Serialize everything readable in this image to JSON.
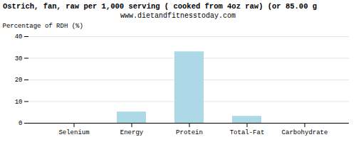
{
  "chart_data": {
    "type": "bar",
    "title": "Ostrich, fan, raw per 1,000 serving ( cooked from 4oz raw) (or 85.00 g",
    "subtitle": "www.dietandfitnesstoday.com",
    "categories": [
      "Selenium",
      "Energy",
      "Protein",
      "Total-Fat",
      "Carbohydrate"
    ],
    "values": [
      0.0,
      5.2,
      33.0,
      3.2,
      0.0
    ],
    "color": "#add8e6",
    "ylabel": "Percentage of RDH (%)",
    "ylim": [
      0,
      40
    ],
    "yticks": [
      0,
      10,
      20,
      30,
      40
    ],
    "grid": true
  }
}
